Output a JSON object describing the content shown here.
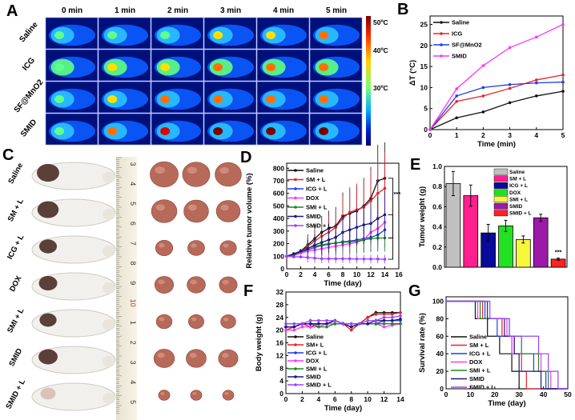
{
  "panel_letters": {
    "A": "A",
    "B": "B",
    "C": "C",
    "D": "D",
    "E": "E",
    "F": "F",
    "G": "G"
  },
  "panel_a": {
    "columns": [
      "0 min",
      "1 min",
      "2 min",
      "3 min",
      "4 min",
      "5 min"
    ],
    "rows": [
      "Saline",
      "ICG",
      "SF@MnO2",
      "SMID"
    ],
    "colorbar_labels": [
      "50ºC",
      "40ºC",
      "30ºC"
    ],
    "colorbar_colors": [
      "#7a0000",
      "#ff2a00",
      "#ffd200",
      "#7dff7a",
      "#00b4ff",
      "#0020d0",
      "#00007a"
    ]
  },
  "panel_c": {
    "rows": [
      "Saline",
      "SM + L",
      "ICG + L",
      "DOX",
      "SMI + L",
      "SMID",
      "SMID + L"
    ],
    "ruler_digits": [
      "3",
      "4",
      "5",
      "6",
      "7",
      "8",
      "9",
      "10",
      "1",
      "2",
      "3",
      "4",
      "5"
    ]
  },
  "chart_data": [
    {
      "id": "B",
      "type": "line",
      "x": [
        0,
        1,
        2,
        3,
        4,
        5
      ],
      "xlabel": "Time (min)",
      "ylabel": "ΔT (°C)",
      "xlim": [
        0,
        5
      ],
      "ylim": [
        0,
        27
      ],
      "xticks": [
        "0",
        "1",
        "2",
        "3",
        "4",
        "5"
      ],
      "yticks": [
        "0",
        "5",
        "10",
        "15",
        "20",
        "25"
      ],
      "legend": "top-left",
      "series": [
        {
          "name": "Saline",
          "color": "#111111",
          "values": [
            0,
            2.8,
            4.2,
            6.4,
            8.0,
            9.1
          ]
        },
        {
          "name": "ICG",
          "color": "#e8232a",
          "values": [
            0,
            6.7,
            8.0,
            9.8,
            11.8,
            13.0
          ]
        },
        {
          "name": "SF@MnO2",
          "color": "#1f3ee0",
          "values": [
            0,
            8.0,
            10.0,
            10.7,
            11.1,
            11.3
          ]
        },
        {
          "name": "SMID",
          "color": "#ff33ff",
          "values": [
            0,
            9.7,
            15.2,
            19.5,
            22.0,
            25.0
          ]
        }
      ]
    },
    {
      "id": "D",
      "type": "line",
      "x": [
        0,
        1,
        2,
        3,
        4,
        5,
        6,
        7,
        8,
        9,
        10,
        11,
        12,
        13,
        14
      ],
      "xlabel": "Time (day)",
      "ylabel": "Relative tumor volume (%)",
      "xlim": [
        0,
        16
      ],
      "ylim": [
        0,
        840
      ],
      "xticks": [
        "0",
        "2",
        "4",
        "6",
        "8",
        "10",
        "12",
        "14",
        "16"
      ],
      "yticks": [
        "0",
        "100",
        "200",
        "300",
        "400",
        "500",
        "600",
        "700",
        "800"
      ],
      "legend": "top-left",
      "annotation": "***",
      "series": [
        {
          "name": "Saline",
          "color": "#111111",
          "values": [
            100,
            120,
            140,
            190,
            240,
            290,
            320,
            340,
            420,
            440,
            460,
            500,
            560,
            700,
            720
          ]
        },
        {
          "name": "SM + L",
          "color": "#e8232a",
          "values": [
            100,
            115,
            135,
            180,
            220,
            260,
            290,
            330,
            400,
            450,
            470,
            490,
            540,
            600,
            640
          ]
        },
        {
          "name": "ICG + L",
          "color": "#1f3ee0",
          "values": [
            100,
            110,
            130,
            150,
            170,
            185,
            195,
            205,
            215,
            220,
            230,
            240,
            250,
            270,
            310
          ]
        },
        {
          "name": "DOX",
          "color": "#ff33ff",
          "values": [
            100,
            105,
            125,
            140,
            150,
            160,
            170,
            180,
            190,
            200,
            210,
            230,
            290,
            320,
            370
          ]
        },
        {
          "name": "SMI + L",
          "color": "#1a8a1a",
          "values": [
            100,
            115,
            145,
            165,
            180,
            190,
            200,
            205,
            210,
            215,
            220,
            230,
            240,
            245,
            245
          ]
        },
        {
          "name": "SMID",
          "color": "#1a1a80",
          "values": [
            100,
            115,
            140,
            160,
            190,
            210,
            230,
            250,
            290,
            310,
            330,
            350,
            360,
            400,
            430
          ]
        },
        {
          "name": "SMID + L",
          "color": "#9b40ff",
          "values": [
            100,
            95,
            95,
            90,
            85,
            80,
            80,
            80,
            80,
            80,
            78,
            78,
            78,
            78,
            76
          ]
        }
      ]
    },
    {
      "id": "E",
      "type": "bar",
      "categories": [
        "Saline",
        "SM + L",
        "ICG + L",
        "DOX",
        "SMI + L",
        "SMID",
        "SMID + L"
      ],
      "values": [
        0.83,
        0.71,
        0.34,
        0.41,
        0.275,
        0.49,
        0.08
      ],
      "errors": [
        0.12,
        0.105,
        0.085,
        0.055,
        0.035,
        0.035,
        0.01
      ],
      "colors": [
        "#c0c0c0",
        "#ff1f8f",
        "#0a0a9a",
        "#22e022",
        "#f6f63a",
        "#9b1aa8",
        "#ff2020"
      ],
      "ylabel": "Tumor weight (g)",
      "ylim": [
        0,
        1.0
      ],
      "yticks": [
        "0.0",
        "0.2",
        "0.4",
        "0.6",
        "0.8",
        "1.0"
      ],
      "legend": "top-right",
      "annotation": "***"
    },
    {
      "id": "F",
      "type": "line",
      "x": [
        0,
        1,
        2,
        3,
        4,
        5,
        6,
        7,
        8,
        9,
        10,
        11,
        12,
        13,
        14
      ],
      "xlabel": "Time (day)",
      "ylabel": "Body weight (g)",
      "xlim": [
        0,
        14
      ],
      "ylim": [
        0,
        32
      ],
      "xticks": [
        "0",
        "2",
        "4",
        "6",
        "8",
        "10",
        "12",
        "14"
      ],
      "yticks": [
        "0",
        "4",
        "8",
        "12",
        "16",
        "20",
        "24",
        "28",
        "32"
      ],
      "legend": "bottom-left",
      "series": [
        {
          "name": "Saline",
          "color": "#111111",
          "values": [
            21,
            21,
            22,
            22,
            22,
            22,
            23,
            22,
            21,
            22,
            24,
            25.5,
            25.5,
            25.5,
            25.5
          ]
        },
        {
          "name": "SM+ L",
          "color": "#e8232a",
          "values": [
            20,
            21,
            22,
            21,
            22,
            22,
            22,
            22,
            20,
            22,
            24,
            25,
            25,
            25,
            25.5
          ]
        },
        {
          "name": "ICG + L",
          "color": "#1f3ee0",
          "values": [
            21,
            21,
            22,
            22,
            22,
            22,
            23,
            22,
            22,
            22,
            22,
            22,
            23,
            23,
            23
          ]
        },
        {
          "name": "DOX",
          "color": "#ff33ff",
          "values": [
            20,
            20,
            21,
            21,
            21,
            22,
            22,
            22,
            22,
            22,
            22,
            22,
            21,
            21.5,
            22
          ]
        },
        {
          "name": "SMI + L",
          "color": "#1a8a1a",
          "values": [
            21,
            21,
            22,
            22,
            21,
            21,
            22,
            22,
            21,
            22,
            22,
            22,
            22,
            22,
            22
          ]
        },
        {
          "name": "SMID",
          "color": "#1a1a80",
          "values": [
            21,
            21,
            22,
            22,
            22,
            22,
            23,
            22,
            21,
            22,
            22,
            23,
            23,
            23,
            23.5
          ]
        },
        {
          "name": "SMID + L",
          "color": "#9b40ff",
          "values": [
            22,
            22,
            22,
            23,
            23,
            23,
            23,
            22,
            22,
            22,
            23,
            23,
            24,
            24,
            24.5
          ]
        }
      ]
    },
    {
      "id": "G",
      "type": "line",
      "xlabel": "Time (day)",
      "ylabel": "Survival rate (%)",
      "xlim": [
        0,
        50
      ],
      "ylim": [
        0,
        105
      ],
      "xticks": [
        "0",
        "10",
        "20",
        "30",
        "40",
        "50"
      ],
      "yticks": [
        "0",
        "20",
        "40",
        "60",
        "80",
        "100"
      ],
      "legend": "bottom-left",
      "series": [
        {
          "name": "Saline",
          "color": "#111111",
          "death_days": [
            12,
            17,
            22,
            27,
            30
          ]
        },
        {
          "name": "SM + L",
          "color": "#e8232a",
          "death_days": [
            15,
            23,
            27,
            31,
            33
          ]
        },
        {
          "name": "ICG + L",
          "color": "#1f3ee0",
          "death_days": [
            16,
            21,
            28,
            36,
            41
          ]
        },
        {
          "name": "DOX",
          "color": "#ff33ff",
          "death_days": [
            13,
            25,
            27,
            39,
            43
          ]
        },
        {
          "name": "SMI + L",
          "color": "#1a8a1a",
          "death_days": [
            14,
            26,
            31,
            38,
            42
          ]
        },
        {
          "name": "SMID",
          "color": "#1a1a80",
          "death_days": [
            17,
            24,
            28,
            30,
            39
          ]
        },
        {
          "name": "SMID + L",
          "color": "#9b40ff",
          "death_days": [
            18,
            26,
            38,
            42,
            46
          ]
        }
      ]
    }
  ]
}
